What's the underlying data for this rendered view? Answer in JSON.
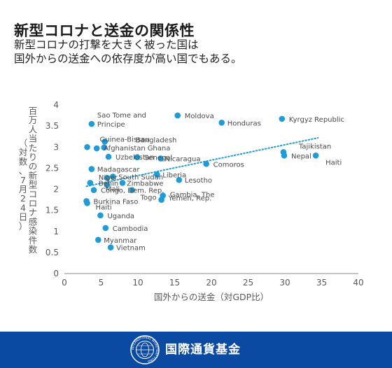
{
  "header": {
    "title": "新型コロナと送金の関係性",
    "subtitle_line1": "新型コロナの打撃を大きく被った国は",
    "subtitle_line2": "国外からの送金への依存度が高い国でもある。"
  },
  "footer": {
    "org_name": "国際通貨基金",
    "seal_text": "INTERNATIONAL MONETARY FUND"
  },
  "colors": {
    "marker": "#1f9bd7",
    "trendline": "#1f9bd7",
    "axis_text": "#595959",
    "footer_bg": "#0b4aa2"
  },
  "chart_data": {
    "type": "scatter",
    "xlabel": "国外からの送金（対GDP比）",
    "ylabel": "百万人当たりの新型コロナ感染件数",
    "ylabel_sub": "（対数、7月24日）",
    "xlim": [
      0,
      40
    ],
    "ylim": [
      0,
      4
    ],
    "x_ticks": [
      0,
      5,
      10,
      15,
      20,
      25,
      30,
      35,
      40
    ],
    "y_ticks": [
      0,
      0.5,
      1,
      1.5,
      2,
      2.5,
      3,
      3.5,
      4
    ],
    "grid": false,
    "trendline": {
      "style": "dotted",
      "x": [
        3,
        34.5
      ],
      "y": [
        2.07,
        3.22
      ]
    },
    "points": [
      {
        "label": "Sao Tome and Principe",
        "x": 3.7,
        "y": 3.55
      },
      {
        "label": "Guinea-Bissau",
        "x": 3.1,
        "y": 3.0
      },
      {
        "label": "Bangladesh",
        "x": 5.5,
        "y": 3.13
      },
      {
        "label": "Afghanistan",
        "x": 4.4,
        "y": 2.97
      },
      {
        "label": "Ghana",
        "x": 5.4,
        "y": 2.99
      },
      {
        "label": "Uzbekistan",
        "x": 6.0,
        "y": 2.77
      },
      {
        "label": "Senegal",
        "x": 9.9,
        "y": 2.76
      },
      {
        "label": "Nicaragua",
        "x": 13.1,
        "y": 2.73
      },
      {
        "label": "Madagascar",
        "x": 3.7,
        "y": 2.48
      },
      {
        "label": "South Sudan",
        "x": 6.6,
        "y": 2.3
      },
      {
        "label": "Liberia",
        "x": 12.6,
        "y": 2.35
      },
      {
        "label": "Niger",
        "x": 5.8,
        "y": 2.27
      },
      {
        "label": "Benin",
        "x": 3.5,
        "y": 2.15
      },
      {
        "label": "Mali",
        "x": 5.8,
        "y": 2.1
      },
      {
        "label": "Zimbabwe",
        "x": 7.9,
        "y": 2.15
      },
      {
        "label": "Congo, Dem. Rep.",
        "x": 4.0,
        "y": 1.98
      },
      {
        "label": "Togo",
        "x": 9.2,
        "y": 1.98
      },
      {
        "label": "Lesotho",
        "x": 15.6,
        "y": 2.22
      },
      {
        "label": "Gambia, The",
        "x": 13.4,
        "y": 1.85
      },
      {
        "label": "Yemen, Rep.",
        "x": 13.2,
        "y": 1.75
      },
      {
        "label": "Burkina Faso",
        "x": 3.0,
        "y": 1.72
      },
      {
        "label": "Haiti",
        "x": 3.1,
        "y": 1.67
      },
      {
        "label": "Uganda",
        "x": 4.9,
        "y": 1.38
      },
      {
        "label": "Cambodia",
        "x": 5.6,
        "y": 1.08
      },
      {
        "label": "Myanmar",
        "x": 4.6,
        "y": 0.8
      },
      {
        "label": "Vietnam",
        "x": 6.3,
        "y": 0.62
      },
      {
        "label": "Moldova",
        "x": 15.4,
        "y": 3.75
      },
      {
        "label": "Honduras",
        "x": 21.4,
        "y": 3.58
      },
      {
        "label": "Comoros",
        "x": 19.3,
        "y": 2.6
      },
      {
        "label": "Kyrgyz Republic",
        "x": 29.6,
        "y": 3.67
      },
      {
        "label": "Tajikistan",
        "x": 29.8,
        "y": 2.88
      },
      {
        "label": "Nepal",
        "x": 29.9,
        "y": 2.8
      },
      {
        "label": "Haiti",
        "x": 34.2,
        "y": 2.8
      }
    ]
  }
}
